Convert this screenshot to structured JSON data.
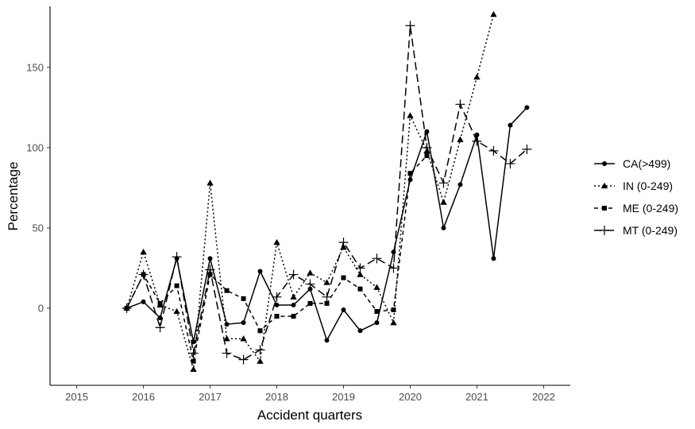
{
  "chart_data": {
    "type": "line",
    "title": "",
    "xlabel": "Accident quarters",
    "ylabel": "Percentage",
    "xlim": [
      2014.6,
      2022.4
    ],
    "ylim": [
      -48,
      188
    ],
    "x_ticks": [
      2015,
      2016,
      2017,
      2018,
      2019,
      2020,
      2021,
      2022
    ],
    "y_ticks": [
      0,
      50,
      100,
      150
    ],
    "grid": false,
    "legend_position": "right",
    "series": [
      {
        "name": "CA(>499)",
        "line": "solid",
        "marker": "circle",
        "x": [
          2015.75,
          2016.0,
          2016.25,
          2016.5,
          2016.75,
          2017.0,
          2017.25,
          2017.5,
          2017.75,
          2018.0,
          2018.25,
          2018.5,
          2018.75,
          2019.0,
          2019.25,
          2019.5,
          2019.75,
          2020.0,
          2020.25,
          2020.5,
          2020.75,
          2021.0,
          2021.25,
          2021.5,
          2021.75
        ],
        "y": [
          0,
          4,
          -6,
          31,
          -21,
          31,
          -10,
          -9,
          23,
          2,
          2,
          12,
          -20,
          -1,
          -14,
          -9,
          35,
          80,
          110,
          50,
          77,
          108,
          31,
          114,
          125
        ]
      },
      {
        "name": "IN (0-249)",
        "line": "dotted",
        "marker": "triangle",
        "x": [
          2015.75,
          2016.0,
          2016.25,
          2016.5,
          2016.75,
          2017.0,
          2017.25,
          2017.5,
          2017.75,
          2018.0,
          2018.25,
          2018.5,
          2018.75,
          2019.0,
          2019.25,
          2019.5,
          2019.75,
          2020.0,
          2020.25,
          2020.5,
          2020.75,
          2021.0,
          2021.25
        ],
        "y": [
          0,
          35,
          2,
          -2,
          -38,
          78,
          -19,
          -19,
          -33,
          41,
          7,
          22,
          16,
          38,
          21,
          13,
          -9,
          120,
          98,
          66,
          105,
          144,
          183
        ]
      },
      {
        "name": "ME (0-249)",
        "line": "dashed",
        "marker": "square",
        "x": [
          2015.75,
          2016.0,
          2016.25,
          2016.5,
          2016.75,
          2017.0,
          2017.25,
          2017.5,
          2017.75,
          2018.0,
          2018.25,
          2018.5,
          2018.75,
          2019.0,
          2019.25,
          2019.5,
          2019.75,
          2020.0,
          2020.25
        ],
        "y": [
          0,
          21,
          3,
          14,
          -33,
          21,
          11,
          6,
          -14,
          -5,
          -5,
          3,
          3,
          19,
          12,
          -2,
          -1,
          84,
          95
        ]
      },
      {
        "name": "MT (0-249)",
        "line": "longdash",
        "marker": "plus",
        "x": [
          2015.75,
          2016.0,
          2016.25,
          2016.5,
          2016.75,
          2017.0,
          2017.25,
          2017.5,
          2017.75,
          2018.0,
          2018.25,
          2018.5,
          2018.75,
          2019.0,
          2019.25,
          2019.5,
          2019.75,
          2020.0,
          2020.25,
          2020.5,
          2020.75,
          2021.0,
          2021.25,
          2021.5,
          2021.75
        ],
        "y": [
          0,
          21,
          -12,
          32,
          -28,
          24,
          -28,
          -32,
          -26,
          7,
          21,
          15,
          7,
          41,
          25,
          31,
          25,
          176,
          100,
          78,
          127,
          104,
          98,
          90,
          99
        ]
      }
    ]
  }
}
